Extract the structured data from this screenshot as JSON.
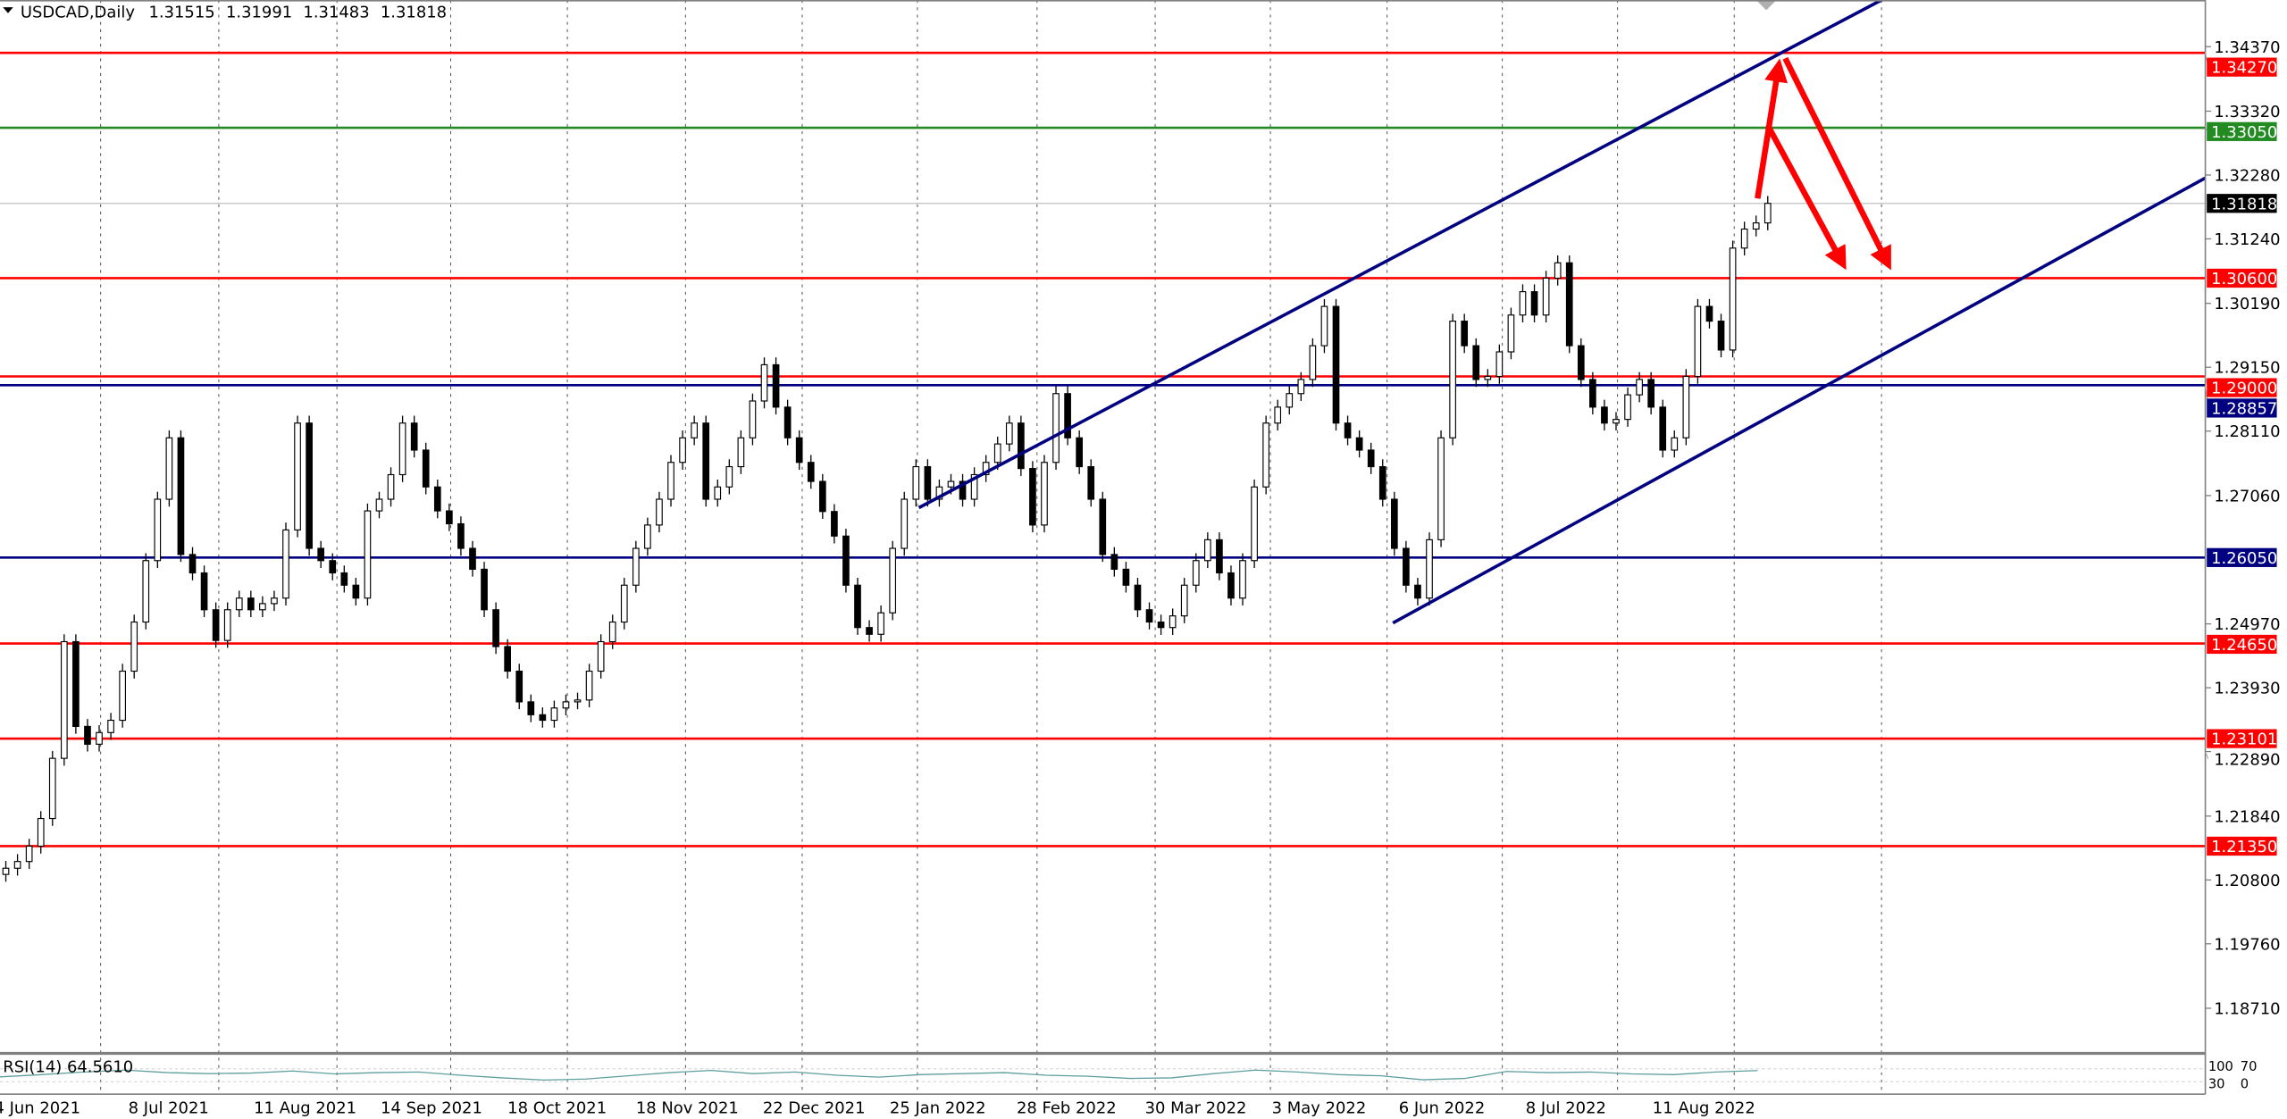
{
  "header": {
    "menu_icon": "triangle-down-icon",
    "symbol": "USDCAD,Daily",
    "open": "1.31515",
    "high": "1.31991",
    "low": "1.31483",
    "close": "1.31818"
  },
  "rsi": {
    "label": "RSI(14) 64.5610",
    "scale_labels": [
      "100",
      "70",
      "30",
      "0"
    ],
    "color": "#5f9ea0"
  },
  "colors": {
    "up_body": "#ffffff",
    "down_body": "#000000",
    "support_resistance": "#ff0000",
    "green_level": "#228b22",
    "channel": "#000080",
    "arrow": "#ff0000"
  },
  "chart_data": {
    "type": "candlestick",
    "title": "USDCAD,Daily",
    "ylim": [
      1.182,
      1.347
    ],
    "price_ticks": [
      "1.34370",
      "1.33320",
      "1.32280",
      "1.31240",
      "1.30190",
      "1.29150",
      "1.28110",
      "1.27060",
      "1.24970",
      "1.23930",
      "1.22890",
      "1.21840",
      "1.20800",
      "1.19760",
      "1.18710"
    ],
    "x_tick_labels": [
      "4 Jun 2021",
      "8 Jul 2021",
      "11 Aug 2021",
      "14 Sep 2021",
      "18 Oct 2021",
      "18 Nov 2021",
      "22 Dec 2021",
      "25 Jan 2022",
      "28 Feb 2022",
      "30 Mar 2022",
      "3 May 2022",
      "6 Jun 2022",
      "8 Jul 2022",
      "11 Aug 2022"
    ],
    "closes": [
      1.2099,
      1.211,
      1.2135,
      1.218,
      1.2278,
      1.2468,
      1.233,
      1.2301,
      1.232,
      1.234,
      1.242,
      1.25,
      1.26,
      1.27,
      1.28,
      1.261,
      1.258,
      1.252,
      1.247,
      1.252,
      1.2539,
      1.252,
      1.253,
      1.2539,
      1.265,
      1.2824,
      1.262,
      1.26,
      1.258,
      1.256,
      1.2539,
      1.2681,
      1.27,
      1.274,
      1.2824,
      1.278,
      1.272,
      1.2681,
      1.266,
      1.262,
      1.2586,
      1.252,
      1.246,
      1.242,
      1.237,
      1.2349,
      1.234,
      1.236,
      1.237,
      1.2373,
      1.242,
      1.2468,
      1.25,
      1.256,
      1.262,
      1.2658,
      1.27,
      1.276,
      1.28,
      1.2824,
      1.27,
      1.272,
      1.2753,
      1.28,
      1.286,
      1.2919,
      1.285,
      1.28,
      1.276,
      1.2729,
      1.268,
      1.264,
      1.256,
      1.2491,
      1.248,
      1.2515,
      1.262,
      1.27,
      1.2753,
      1.27,
      1.272,
      1.2729,
      1.27,
      1.274,
      1.276,
      1.279,
      1.2824,
      1.275,
      1.2658,
      1.276,
      1.2872,
      1.28,
      1.2753,
      1.27,
      1.261,
      1.2586,
      1.256,
      1.252,
      1.25,
      1.2491,
      1.251,
      1.256,
      1.26,
      1.2634,
      1.258,
      1.2539,
      1.26,
      1.272,
      1.2824,
      1.285,
      1.2872,
      1.2895,
      1.295,
      1.3014,
      1.2824,
      1.28,
      1.278,
      1.2753,
      1.27,
      1.262,
      1.256,
      1.2539,
      1.2634,
      1.28,
      1.299,
      1.295,
      1.2895,
      1.29,
      1.294,
      1.3,
      1.3038,
      1.3,
      1.306,
      1.3085,
      1.295,
      1.2895,
      1.285,
      1.2824,
      1.283,
      1.287,
      1.2895,
      1.285,
      1.278,
      1.28,
      1.29,
      1.3014,
      1.299,
      1.2943,
      1.3109,
      1.314,
      1.315,
      1.31818
    ],
    "rsi_values": [
      45,
      52,
      60,
      66,
      58,
      55,
      57,
      63,
      54,
      58,
      60,
      50,
      42,
      35,
      38,
      48,
      58,
      65,
      55,
      60,
      50,
      44,
      52,
      55,
      58,
      50,
      47,
      40,
      42,
      55,
      66,
      60,
      52,
      48,
      36,
      40,
      62,
      58,
      60,
      54,
      52,
      60,
      64.56
    ],
    "rsi_levels": [
      70,
      30
    ],
    "horizontal_levels": [
      {
        "price": 1.3427,
        "label": "1.34270",
        "color": "#ff0000"
      },
      {
        "price": 1.3305,
        "label": "1.33050",
        "color": "#228b22"
      },
      {
        "price": 1.306,
        "label": "1.30600",
        "color": "#ff0000"
      },
      {
        "price": 1.29,
        "label": "1.29000",
        "color": "#ff0000"
      },
      {
        "price": 1.28857,
        "label": "1.28857",
        "color": "#000080"
      },
      {
        "price": 1.2605,
        "label": "1.26050",
        "color": "#000080"
      },
      {
        "price": 1.2465,
        "label": "1.24650",
        "color": "#ff0000"
      },
      {
        "price": 1.23101,
        "label": "1.23101",
        "color": "#ff0000"
      },
      {
        "price": 1.2135,
        "label": "1.21350",
        "color": "#ff0000"
      }
    ],
    "bid": {
      "price": 1.31818,
      "label": "1.31818",
      "color": "#000000"
    }
  }
}
